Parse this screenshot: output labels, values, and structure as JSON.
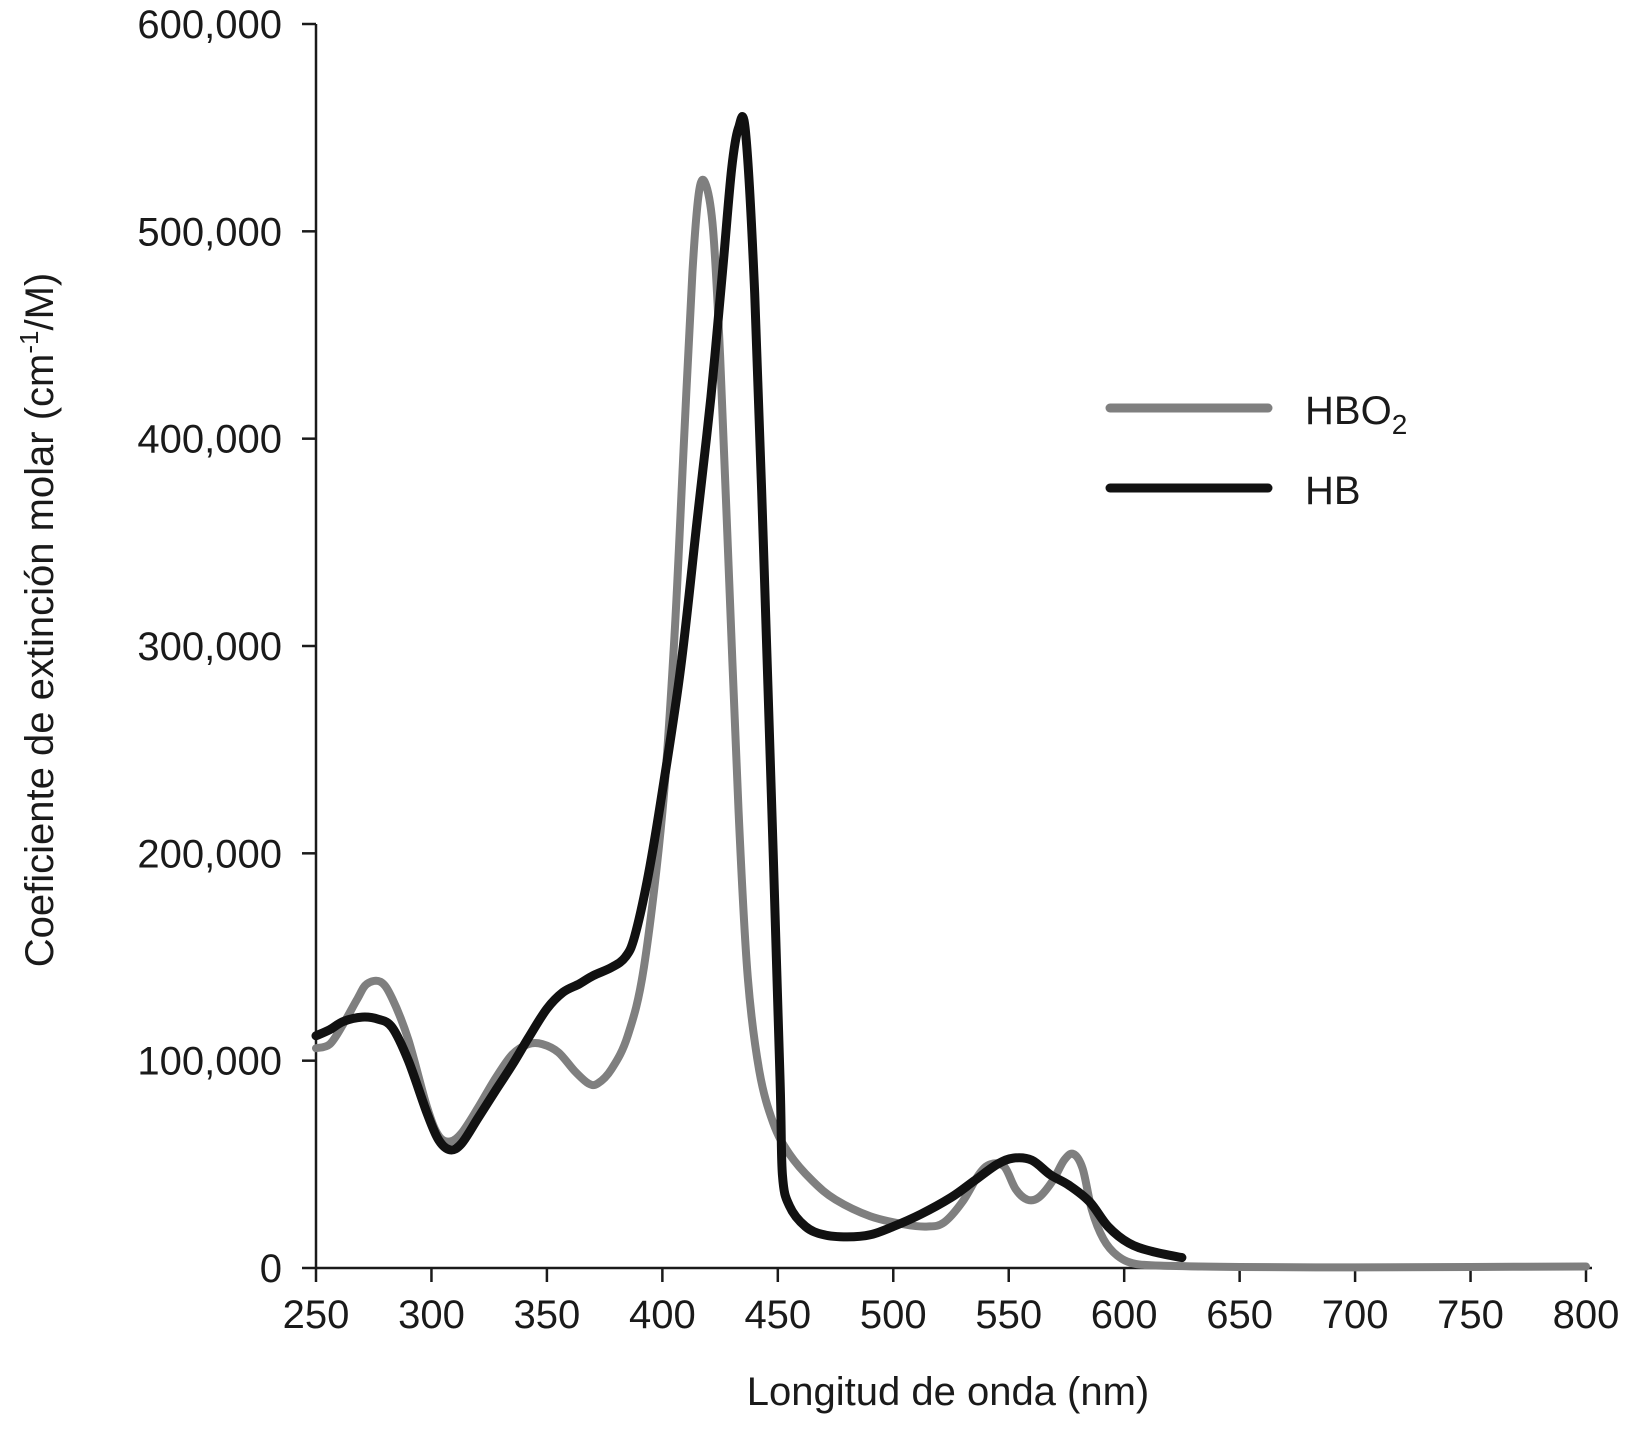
{
  "chart_data": {
    "type": "line",
    "title": "",
    "xlabel": "Longitud de onda (nm)",
    "ylabel_main": "Coeficiente de extinción molar (cm",
    "ylabel_sup": "-1",
    "ylabel_end": "/M)",
    "xlim": [
      250,
      800
    ],
    "ylim": [
      0,
      600000
    ],
    "xticks": [
      250,
      300,
      350,
      400,
      450,
      500,
      550,
      600,
      650,
      700,
      750,
      800
    ],
    "xtick_labels": [
      "250",
      "300",
      "350",
      "400",
      "450",
      "500",
      "550",
      "600",
      "650",
      "700",
      "750",
      "800"
    ],
    "yticks": [
      0,
      100000,
      200000,
      300000,
      400000,
      500000,
      600000
    ],
    "ytick_labels": [
      "0",
      "100,000",
      "200,000",
      "300,000",
      "400,000",
      "500,000",
      "600,000"
    ],
    "grid": false,
    "legend_position": "top-right",
    "series": [
      {
        "name": "HBO",
        "name_sub": "2",
        "color": "#7f7f7f",
        "points": [
          [
            250,
            106000
          ],
          [
            256,
            108000
          ],
          [
            262,
            118000
          ],
          [
            268,
            130000
          ],
          [
            272,
            137000
          ],
          [
            278,
            138000
          ],
          [
            283,
            130000
          ],
          [
            290,
            110000
          ],
          [
            298,
            78000
          ],
          [
            303,
            64000
          ],
          [
            308,
            61000
          ],
          [
            313,
            65000
          ],
          [
            320,
            77000
          ],
          [
            328,
            92000
          ],
          [
            335,
            103000
          ],
          [
            342,
            108000
          ],
          [
            348,
            108000
          ],
          [
            355,
            104000
          ],
          [
            362,
            95000
          ],
          [
            368,
            89000
          ],
          [
            372,
            89000
          ],
          [
            378,
            96000
          ],
          [
            385,
            112000
          ],
          [
            392,
            145000
          ],
          [
            400,
            220000
          ],
          [
            405,
            300000
          ],
          [
            409,
            390000
          ],
          [
            413,
            480000
          ],
          [
            416,
            520000
          ],
          [
            419,
            522000
          ],
          [
            422,
            500000
          ],
          [
            425,
            440000
          ],
          [
            429,
            330000
          ],
          [
            433,
            220000
          ],
          [
            437,
            140000
          ],
          [
            442,
            95000
          ],
          [
            448,
            70000
          ],
          [
            455,
            55000
          ],
          [
            465,
            42000
          ],
          [
            475,
            33000
          ],
          [
            490,
            25000
          ],
          [
            505,
            21000
          ],
          [
            515,
            20000
          ],
          [
            522,
            22000
          ],
          [
            530,
            32000
          ],
          [
            537,
            45000
          ],
          [
            542,
            50000
          ],
          [
            548,
            49000
          ],
          [
            553,
            38000
          ],
          [
            558,
            33000
          ],
          [
            563,
            34000
          ],
          [
            569,
            42000
          ],
          [
            574,
            52000
          ],
          [
            578,
            55000
          ],
          [
            582,
            48000
          ],
          [
            586,
            28000
          ],
          [
            591,
            14000
          ],
          [
            597,
            6000
          ],
          [
            605,
            2000
          ],
          [
            620,
            1000
          ],
          [
            650,
            500
          ],
          [
            700,
            300
          ],
          [
            750,
            500
          ],
          [
            800,
            700
          ]
        ]
      },
      {
        "name": "HB",
        "name_sub": "",
        "color": "#111111",
        "points": [
          [
            250,
            112000
          ],
          [
            256,
            115000
          ],
          [
            262,
            119000
          ],
          [
            270,
            121000
          ],
          [
            277,
            120000
          ],
          [
            283,
            116000
          ],
          [
            290,
            100000
          ],
          [
            298,
            75000
          ],
          [
            303,
            62000
          ],
          [
            308,
            57000
          ],
          [
            313,
            60000
          ],
          [
            320,
            72000
          ],
          [
            328,
            86000
          ],
          [
            335,
            98000
          ],
          [
            342,
            111000
          ],
          [
            350,
            125000
          ],
          [
            357,
            133000
          ],
          [
            364,
            137000
          ],
          [
            370,
            141000
          ],
          [
            378,
            145000
          ],
          [
            384,
            150000
          ],
          [
            388,
            160000
          ],
          [
            394,
            190000
          ],
          [
            400,
            230000
          ],
          [
            408,
            290000
          ],
          [
            415,
            360000
          ],
          [
            421,
            420000
          ],
          [
            426,
            480000
          ],
          [
            430,
            530000
          ],
          [
            433,
            550000
          ],
          [
            436,
            548000
          ],
          [
            440,
            470000
          ],
          [
            444,
            340000
          ],
          [
            448,
            200000
          ],
          [
            451,
            90000
          ],
          [
            452,
            45000
          ],
          [
            455,
            30000
          ],
          [
            462,
            20000
          ],
          [
            470,
            16000
          ],
          [
            480,
            15000
          ],
          [
            490,
            16000
          ],
          [
            500,
            20000
          ],
          [
            512,
            26000
          ],
          [
            525,
            34000
          ],
          [
            535,
            42000
          ],
          [
            545,
            50000
          ],
          [
            552,
            53000
          ],
          [
            560,
            52000
          ],
          [
            568,
            45000
          ],
          [
            576,
            40000
          ],
          [
            585,
            32000
          ],
          [
            593,
            20000
          ],
          [
            602,
            12000
          ],
          [
            612,
            8000
          ],
          [
            625,
            5000
          ]
        ]
      }
    ]
  }
}
